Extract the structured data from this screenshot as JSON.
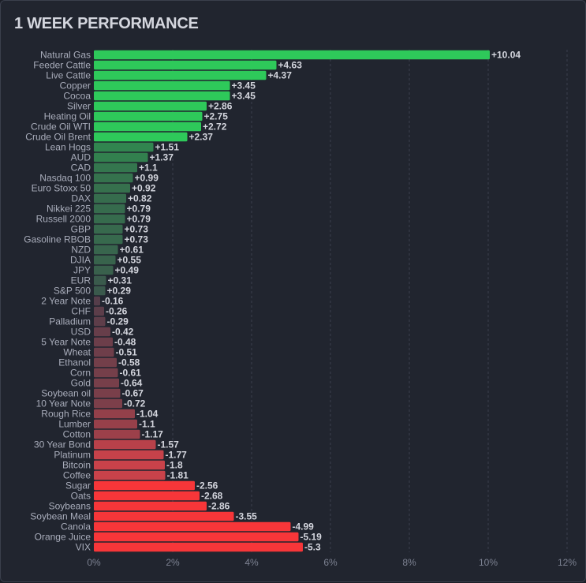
{
  "chart_data": {
    "type": "bar",
    "orientation": "horizontal",
    "title": "1 WEEK PERFORMANCE",
    "xlabel": "",
    "ylabel": "",
    "xlim": [
      0,
      12
    ],
    "xticks": [
      "0%",
      "2%",
      "4%",
      "6%",
      "8%",
      "10%",
      "12%"
    ],
    "grid": true,
    "categories": [
      "Natural Gas",
      "Feeder Cattle",
      "Live Cattle",
      "Copper",
      "Cocoa",
      "Silver",
      "Heating Oil",
      "Crude Oil WTI",
      "Crude Oil Brent",
      "Lean Hogs",
      "AUD",
      "CAD",
      "Nasdaq 100",
      "Euro Stoxx 50",
      "DAX",
      "Nikkei 225",
      "Russell 2000",
      "GBP",
      "Gasoline RBOB",
      "NZD",
      "DJIA",
      "JPY",
      "EUR",
      "S&P 500",
      "2 Year Note",
      "CHF",
      "Palladium",
      "USD",
      "5 Year Note",
      "Wheat",
      "Ethanol",
      "Corn",
      "Gold",
      "Soybean oil",
      "10 Year Note",
      "Rough Rice",
      "Lumber",
      "Cotton",
      "30 Year Bond",
      "Platinum",
      "Bitcoin",
      "Coffee",
      "Sugar",
      "Oats",
      "Soybeans",
      "Soybean Meal",
      "Canola",
      "Orange Juice",
      "VIX"
    ],
    "values": [
      10.04,
      4.63,
      4.37,
      3.45,
      3.45,
      2.86,
      2.75,
      2.72,
      2.37,
      1.51,
      1.37,
      1.1,
      0.99,
      0.92,
      0.82,
      0.79,
      0.79,
      0.73,
      0.73,
      0.61,
      0.55,
      0.49,
      0.31,
      0.29,
      -0.16,
      -0.26,
      -0.29,
      -0.42,
      -0.48,
      -0.51,
      -0.58,
      -0.61,
      -0.64,
      -0.67,
      -0.72,
      -1.04,
      -1.1,
      -1.17,
      -1.57,
      -1.77,
      -1.8,
      -1.81,
      -2.56,
      -2.68,
      -2.86,
      -3.55,
      -4.99,
      -5.19,
      -5.3
    ],
    "value_labels": [
      "+10.04",
      "+4.63",
      "+4.37",
      "+3.45",
      "+3.45",
      "+2.86",
      "+2.75",
      "+2.72",
      "+2.37",
      "+1.51",
      "+1.37",
      "+1.1",
      "+0.99",
      "+0.92",
      "+0.82",
      "+0.79",
      "+0.79",
      "+0.73",
      "+0.73",
      "+0.61",
      "+0.55",
      "+0.49",
      "+0.31",
      "+0.29",
      "-0.16",
      "-0.26",
      "-0.29",
      "-0.42",
      "-0.48",
      "-0.51",
      "-0.58",
      "-0.61",
      "-0.64",
      "-0.67",
      "-0.72",
      "-1.04",
      "-1.1",
      "-1.17",
      "-1.57",
      "-1.77",
      "-1.8",
      "-1.81",
      "-2.56",
      "-2.68",
      "-2.86",
      "-3.55",
      "-4.99",
      "-5.19",
      "-5.3"
    ],
    "colors": {
      "positive_strong": "#2ec95a",
      "positive_weak": "#3c4f4b",
      "negative_weak": "#4a3d4a",
      "negative_mid": "#c8424a",
      "negative_strong": "#f73639"
    }
  }
}
